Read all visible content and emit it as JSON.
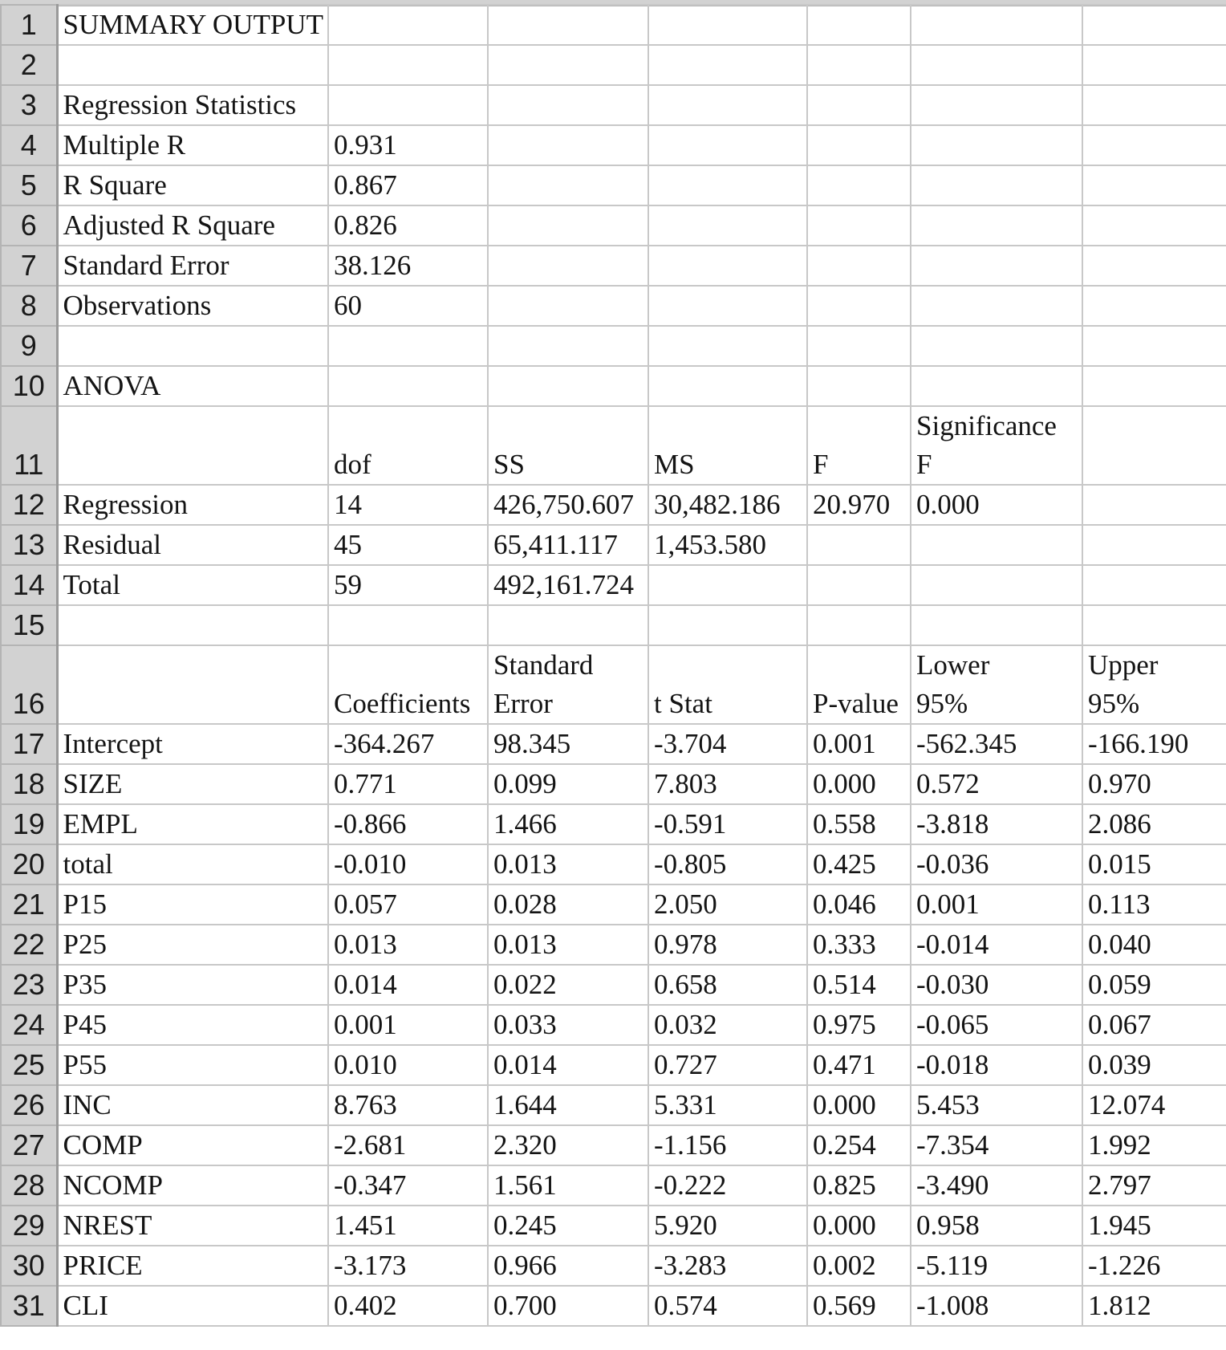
{
  "header_rows": [
    {
      "row": "1",
      "cells": [
        "SUMMARY OUTPUT",
        "",
        "",
        "",
        "",
        "",
        ""
      ]
    },
    {
      "row": "2",
      "cells": [
        "",
        "",
        "",
        "",
        "",
        "",
        ""
      ]
    },
    {
      "row": "3",
      "cells": [
        "Regression Statistics",
        "",
        "",
        "",
        "",
        "",
        ""
      ]
    },
    {
      "row": "4",
      "cells": [
        "Multiple R",
        "0.931",
        "",
        "",
        "",
        "",
        ""
      ]
    },
    {
      "row": "5",
      "cells": [
        "R Square",
        "0.867",
        "",
        "",
        "",
        "",
        ""
      ]
    },
    {
      "row": "6",
      "cells": [
        "Adjusted R Square",
        "0.826",
        "",
        "",
        "",
        "",
        ""
      ]
    },
    {
      "row": "7",
      "cells": [
        "Standard Error",
        "38.126",
        "",
        "",
        "",
        "",
        ""
      ]
    },
    {
      "row": "8",
      "cells": [
        "Observations",
        "60",
        "",
        "",
        "",
        "",
        ""
      ]
    },
    {
      "row": "9",
      "cells": [
        "",
        "",
        "",
        "",
        "",
        "",
        ""
      ]
    },
    {
      "row": "10",
      "cells": [
        "ANOVA",
        "",
        "",
        "",
        "",
        "",
        ""
      ]
    }
  ],
  "anova_header": {
    "row": "11",
    "cells": [
      "",
      "dof",
      "SS",
      "MS",
      "F",
      "Significance\nF",
      ""
    ]
  },
  "anova_rows": [
    {
      "row": "12",
      "cells": [
        "Regression",
        "14",
        "426,750.607",
        "30,482.186",
        "20.970",
        "0.000",
        ""
      ]
    },
    {
      "row": "13",
      "cells": [
        "Residual",
        "45",
        "65,411.117",
        "1,453.580",
        "",
        "",
        ""
      ]
    },
    {
      "row": "14",
      "cells": [
        "Total",
        "59",
        "492,161.724",
        "",
        "",
        "",
        ""
      ]
    },
    {
      "row": "15",
      "cells": [
        "",
        "",
        "",
        "",
        "",
        "",
        ""
      ]
    }
  ],
  "coef_header": {
    "row": "16",
    "cells": [
      "",
      "Coefficients",
      "Standard\nError",
      "t Stat",
      "P-value",
      "Lower\n95%",
      "Upper\n95%"
    ]
  },
  "coef_rows": [
    {
      "row": "17",
      "cells": [
        "Intercept",
        "-364.267",
        "98.345",
        "-3.704",
        "0.001",
        "-562.345",
        "-166.190"
      ]
    },
    {
      "row": "18",
      "cells": [
        "SIZE",
        "0.771",
        "0.099",
        "7.803",
        "0.000",
        "0.572",
        "0.970"
      ]
    },
    {
      "row": "19",
      "cells": [
        "EMPL",
        "-0.866",
        "1.466",
        "-0.591",
        "0.558",
        "-3.818",
        "2.086"
      ]
    },
    {
      "row": "20",
      "cells": [
        "total",
        "-0.010",
        "0.013",
        "-0.805",
        "0.425",
        "-0.036",
        "0.015"
      ]
    },
    {
      "row": "21",
      "cells": [
        "P15",
        "0.057",
        "0.028",
        "2.050",
        "0.046",
        "0.001",
        "0.113"
      ]
    },
    {
      "row": "22",
      "cells": [
        "P25",
        "0.013",
        "0.013",
        "0.978",
        "0.333",
        "-0.014",
        "0.040"
      ]
    },
    {
      "row": "23",
      "cells": [
        "P35",
        "0.014",
        "0.022",
        "0.658",
        "0.514",
        "-0.030",
        "0.059"
      ]
    },
    {
      "row": "24",
      "cells": [
        "P45",
        "0.001",
        "0.033",
        "0.032",
        "0.975",
        "-0.065",
        "0.067"
      ]
    },
    {
      "row": "25",
      "cells": [
        "P55",
        "0.010",
        "0.014",
        "0.727",
        "0.471",
        "-0.018",
        "0.039"
      ]
    },
    {
      "row": "26",
      "cells": [
        "INC",
        "8.763",
        "1.644",
        "5.331",
        "0.000",
        "5.453",
        "12.074"
      ]
    },
    {
      "row": "27",
      "cells": [
        "COMP",
        "-2.681",
        "2.320",
        "-1.156",
        "0.254",
        "-7.354",
        "1.992"
      ]
    },
    {
      "row": "28",
      "cells": [
        "NCOMP",
        "-0.347",
        "1.561",
        "-0.222",
        "0.825",
        "-3.490",
        "2.797"
      ]
    },
    {
      "row": "29",
      "cells": [
        "NREST",
        "1.451",
        "0.245",
        "5.920",
        "0.000",
        "0.958",
        "1.945"
      ]
    },
    {
      "row": "30",
      "cells": [
        "PRICE",
        "-3.173",
        "0.966",
        "-3.283",
        "0.002",
        "-5.119",
        "-1.226"
      ]
    },
    {
      "row": "31",
      "cells": [
        "CLI",
        "0.402",
        "0.700",
        "0.574",
        "0.569",
        "-1.008",
        "1.812"
      ]
    }
  ]
}
